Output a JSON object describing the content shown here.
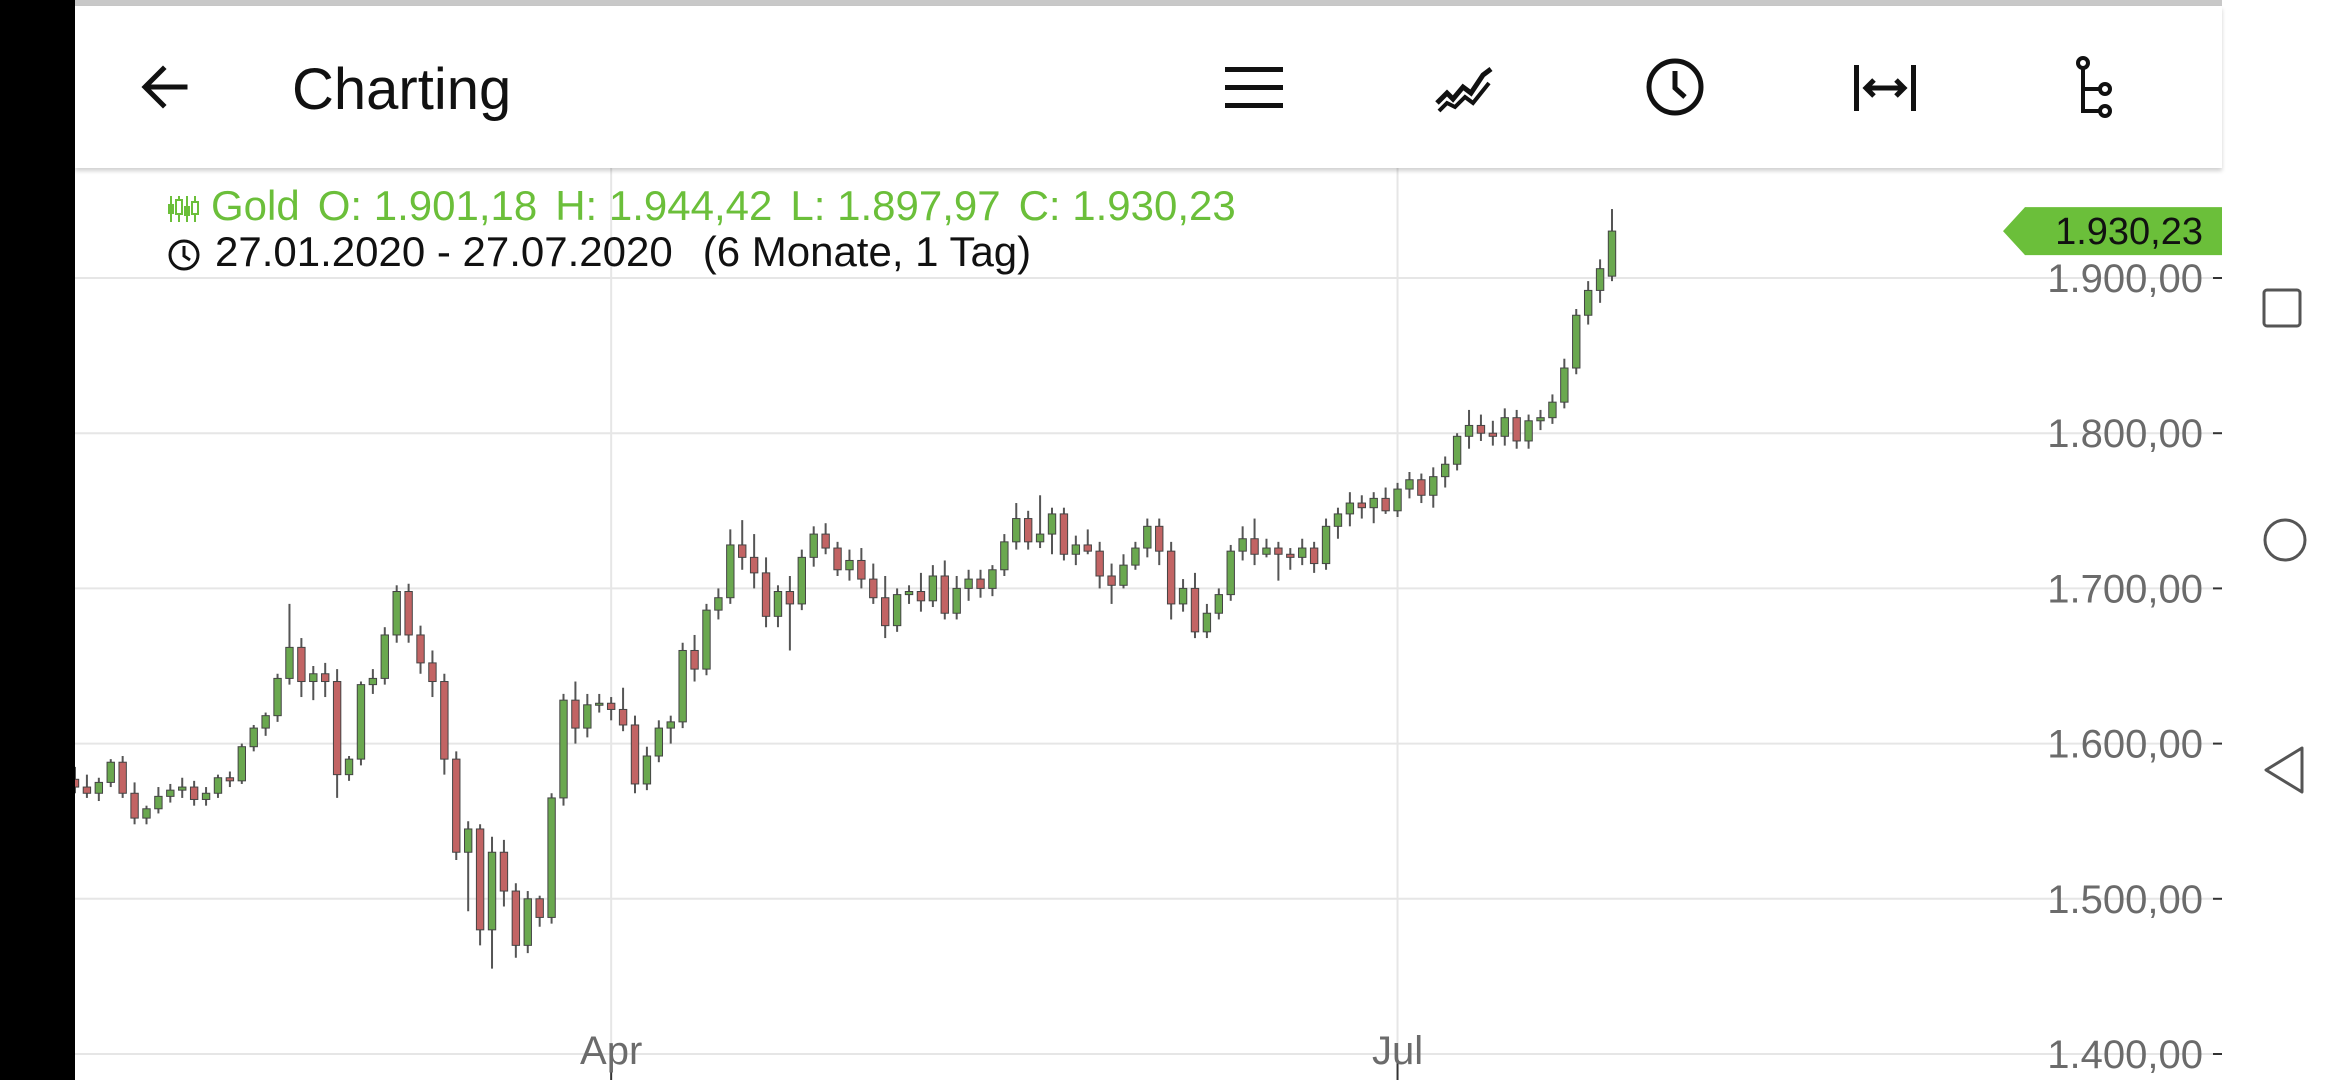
{
  "header": {
    "title": "Charting",
    "icons": [
      "back-arrow-icon",
      "menu-icon",
      "line-chart-icon",
      "clock-icon",
      "range-arrows-icon",
      "tree-icon"
    ]
  },
  "info": {
    "name": "Gold",
    "open": "O: 1.901,18",
    "high": "H: 1.944,42",
    "low": "L: 1.897,97",
    "close": "C: 1.930,23",
    "range": "27.01.2020 - 27.07.2020",
    "period": "(6 Monate, 1 Tag)"
  },
  "colors": {
    "up": "#6aa84f",
    "down": "#c26464",
    "accent": "#6bbf3a",
    "grid": "#e6e6e6"
  },
  "chart_data": {
    "type": "candlestick",
    "y_ticks": [
      "1.900,00",
      "1.800,00",
      "1.700,00",
      "1.600,00",
      "1.500,00",
      "1.400,00"
    ],
    "y_tick_values": [
      1900,
      1800,
      1700,
      1600,
      1500,
      1400
    ],
    "x_labels": [
      "Apr",
      "Jul"
    ],
    "last_price_label": "1.930,23",
    "last_price": 1930.23,
    "ylim": [
      1400,
      1950
    ],
    "candles": [
      [
        1577,
        1585,
        1568,
        1572
      ],
      [
        1572,
        1580,
        1565,
        1568
      ],
      [
        1568,
        1578,
        1563,
        1575
      ],
      [
        1575,
        1590,
        1572,
        1588
      ],
      [
        1588,
        1592,
        1565,
        1568
      ],
      [
        1568,
        1575,
        1548,
        1552
      ],
      [
        1552,
        1560,
        1548,
        1558
      ],
      [
        1558,
        1572,
        1555,
        1566
      ],
      [
        1566,
        1574,
        1562,
        1570
      ],
      [
        1570,
        1578,
        1565,
        1572
      ],
      [
        1572,
        1576,
        1560,
        1564
      ],
      [
        1564,
        1572,
        1560,
        1568
      ],
      [
        1568,
        1580,
        1565,
        1578
      ],
      [
        1578,
        1582,
        1572,
        1576
      ],
      [
        1576,
        1600,
        1574,
        1598
      ],
      [
        1598,
        1612,
        1595,
        1610
      ],
      [
        1610,
        1620,
        1605,
        1618
      ],
      [
        1618,
        1645,
        1614,
        1642
      ],
      [
        1642,
        1690,
        1638,
        1662
      ],
      [
        1662,
        1668,
        1630,
        1640
      ],
      [
        1640,
        1650,
        1628,
        1645
      ],
      [
        1645,
        1652,
        1630,
        1640
      ],
      [
        1640,
        1648,
        1565,
        1580
      ],
      [
        1580,
        1592,
        1576,
        1590
      ],
      [
        1590,
        1640,
        1586,
        1638
      ],
      [
        1638,
        1648,
        1632,
        1642
      ],
      [
        1642,
        1675,
        1638,
        1670
      ],
      [
        1670,
        1702,
        1665,
        1698
      ],
      [
        1698,
        1703,
        1665,
        1670
      ],
      [
        1670,
        1676,
        1645,
        1652
      ],
      [
        1652,
        1660,
        1630,
        1640
      ],
      [
        1640,
        1645,
        1580,
        1590
      ],
      [
        1590,
        1595,
        1525,
        1530
      ],
      [
        1530,
        1550,
        1492,
        1545
      ],
      [
        1545,
        1548,
        1470,
        1480
      ],
      [
        1480,
        1540,
        1455,
        1530
      ],
      [
        1530,
        1538,
        1495,
        1505
      ],
      [
        1505,
        1510,
        1462,
        1470
      ],
      [
        1470,
        1505,
        1465,
        1500
      ],
      [
        1500,
        1502,
        1482,
        1488
      ],
      [
        1488,
        1568,
        1484,
        1565
      ],
      [
        1565,
        1632,
        1560,
        1628
      ],
      [
        1628,
        1640,
        1600,
        1610
      ],
      [
        1610,
        1632,
        1604,
        1625
      ],
      [
        1625,
        1632,
        1620,
        1626
      ],
      [
        1626,
        1630,
        1615,
        1622
      ],
      [
        1622,
        1636,
        1608,
        1612
      ],
      [
        1612,
        1618,
        1568,
        1574
      ],
      [
        1574,
        1598,
        1570,
        1592
      ],
      [
        1592,
        1615,
        1588,
        1610
      ],
      [
        1610,
        1618,
        1600,
        1614
      ],
      [
        1614,
        1665,
        1610,
        1660
      ],
      [
        1660,
        1670,
        1640,
        1648
      ],
      [
        1648,
        1690,
        1644,
        1686
      ],
      [
        1686,
        1700,
        1680,
        1694
      ],
      [
        1694,
        1738,
        1690,
        1728
      ],
      [
        1728,
        1744,
        1712,
        1720
      ],
      [
        1720,
        1735,
        1700,
        1710
      ],
      [
        1710,
        1720,
        1675,
        1682
      ],
      [
        1682,
        1702,
        1675,
        1698
      ],
      [
        1698,
        1708,
        1660,
        1690
      ],
      [
        1690,
        1725,
        1686,
        1720
      ],
      [
        1720,
        1740,
        1714,
        1735
      ],
      [
        1735,
        1742,
        1722,
        1726
      ],
      [
        1726,
        1730,
        1708,
        1712
      ],
      [
        1712,
        1725,
        1705,
        1718
      ],
      [
        1718,
        1726,
        1700,
        1706
      ],
      [
        1706,
        1716,
        1690,
        1694
      ],
      [
        1694,
        1708,
        1668,
        1676
      ],
      [
        1676,
        1700,
        1672,
        1696
      ],
      [
        1696,
        1702,
        1690,
        1698
      ],
      [
        1698,
        1710,
        1685,
        1692
      ],
      [
        1692,
        1715,
        1688,
        1708
      ],
      [
        1708,
        1718,
        1680,
        1684
      ],
      [
        1684,
        1708,
        1680,
        1700
      ],
      [
        1700,
        1712,
        1692,
        1706
      ],
      [
        1706,
        1712,
        1694,
        1700
      ],
      [
        1700,
        1715,
        1695,
        1712
      ],
      [
        1712,
        1735,
        1708,
        1730
      ],
      [
        1730,
        1755,
        1725,
        1745
      ],
      [
        1745,
        1750,
        1725,
        1730
      ],
      [
        1730,
        1760,
        1726,
        1735
      ],
      [
        1735,
        1752,
        1722,
        1748
      ],
      [
        1748,
        1752,
        1718,
        1722
      ],
      [
        1722,
        1734,
        1715,
        1728
      ],
      [
        1728,
        1738,
        1722,
        1724
      ],
      [
        1724,
        1730,
        1700,
        1708
      ],
      [
        1708,
        1716,
        1690,
        1702
      ],
      [
        1702,
        1722,
        1700,
        1715
      ],
      [
        1715,
        1730,
        1712,
        1726
      ],
      [
        1726,
        1745,
        1720,
        1740
      ],
      [
        1740,
        1745,
        1715,
        1724
      ],
      [
        1724,
        1730,
        1680,
        1690
      ],
      [
        1690,
        1706,
        1685,
        1700
      ],
      [
        1700,
        1710,
        1668,
        1672
      ],
      [
        1672,
        1690,
        1668,
        1684
      ],
      [
        1684,
        1700,
        1680,
        1696
      ],
      [
        1696,
        1728,
        1692,
        1724
      ],
      [
        1724,
        1740,
        1718,
        1732
      ],
      [
        1732,
        1745,
        1715,
        1722
      ],
      [
        1722,
        1732,
        1720,
        1726
      ],
      [
        1726,
        1730,
        1705,
        1722
      ],
      [
        1722,
        1726,
        1712,
        1720
      ],
      [
        1720,
        1732,
        1715,
        1726
      ],
      [
        1726,
        1730,
        1710,
        1716
      ],
      [
        1716,
        1745,
        1712,
        1740
      ],
      [
        1740,
        1752,
        1732,
        1748
      ],
      [
        1748,
        1762,
        1740,
        1755
      ],
      [
        1755,
        1760,
        1745,
        1752
      ],
      [
        1752,
        1762,
        1742,
        1758
      ],
      [
        1758,
        1765,
        1748,
        1750
      ],
      [
        1750,
        1768,
        1746,
        1764
      ],
      [
        1764,
        1775,
        1758,
        1770
      ],
      [
        1770,
        1774,
        1755,
        1760
      ],
      [
        1760,
        1778,
        1752,
        1772
      ],
      [
        1772,
        1785,
        1765,
        1780
      ],
      [
        1780,
        1800,
        1776,
        1798
      ],
      [
        1798,
        1815,
        1790,
        1805
      ],
      [
        1805,
        1812,
        1795,
        1800
      ],
      [
        1800,
        1808,
        1792,
        1798
      ],
      [
        1798,
        1816,
        1792,
        1810
      ],
      [
        1810,
        1815,
        1790,
        1795
      ],
      [
        1795,
        1812,
        1790,
        1808
      ],
      [
        1808,
        1815,
        1802,
        1810
      ],
      [
        1810,
        1825,
        1806,
        1820
      ],
      [
        1820,
        1848,
        1816,
        1842
      ],
      [
        1842,
        1880,
        1838,
        1876
      ],
      [
        1876,
        1898,
        1870,
        1892
      ],
      [
        1892,
        1912,
        1884,
        1906
      ],
      [
        1901.18,
        1944.42,
        1897.97,
        1930.23
      ]
    ]
  }
}
